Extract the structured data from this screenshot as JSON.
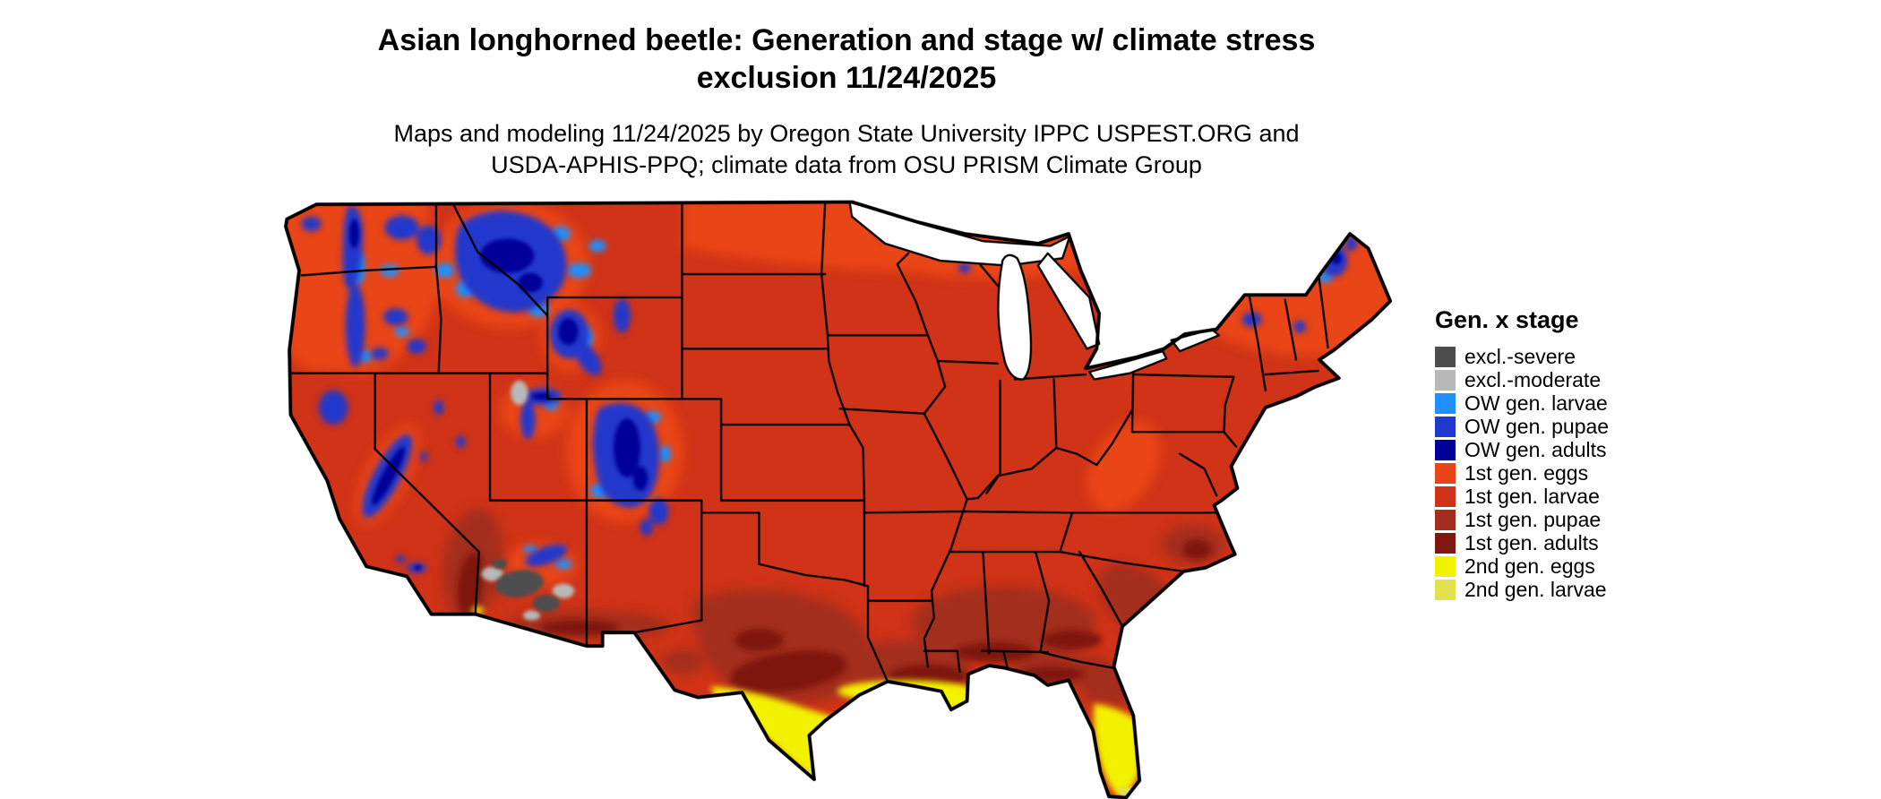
{
  "page": {
    "background": "#ffffff"
  },
  "title": {
    "line1": "Asian longhorned beetle: Generation and stage w/ climate stress",
    "line2": "exclusion 11/24/2025"
  },
  "subtitle": {
    "line1": "Maps and modeling 11/24/2025 by Oregon State University IPPC USPEST.ORG and",
    "line2": "USDA-APHIS-PPQ; climate data from OSU PRISM Climate Group"
  },
  "map": {
    "region": "Contiguous United States",
    "model_date": "11/24/2025",
    "type": "raster phenology map with state borders"
  },
  "colors": {
    "excl_severe": "#4d4d4d",
    "excl_moderate": "#b9b9b9",
    "ow_larvae": "#1e90ff",
    "ow_pupae": "#2138cc",
    "ow_adults": "#000099",
    "first_eggs": "#ea4419",
    "first_larvae": "#d03317",
    "first_pupae": "#a32d1e",
    "first_adults": "#7f1810",
    "second_eggs": "#f2f200",
    "second_larvae": "#e2e24e",
    "map_outline": "#000000",
    "lake_fill": "#ffffff"
  },
  "legend": {
    "title": "Gen. x stage",
    "items": [
      {
        "label": "excl.-severe",
        "color_key": "excl_severe"
      },
      {
        "label": "excl.-moderate",
        "color_key": "excl_moderate"
      },
      {
        "label": "OW gen. larvae",
        "color_key": "ow_larvae"
      },
      {
        "label": "OW gen. pupae",
        "color_key": "ow_pupae"
      },
      {
        "label": "OW gen. adults",
        "color_key": "ow_adults"
      },
      {
        "label": "1st gen. eggs",
        "color_key": "first_eggs"
      },
      {
        "label": "1st gen. larvae",
        "color_key": "first_larvae"
      },
      {
        "label": "1st gen. pupae",
        "color_key": "first_pupae"
      },
      {
        "label": "1st gen. adults",
        "color_key": "first_adults"
      },
      {
        "label": "2nd gen. eggs",
        "color_key": "second_eggs"
      },
      {
        "label": "2nd gen. larvae",
        "color_key": "second_larvae"
      }
    ]
  }
}
